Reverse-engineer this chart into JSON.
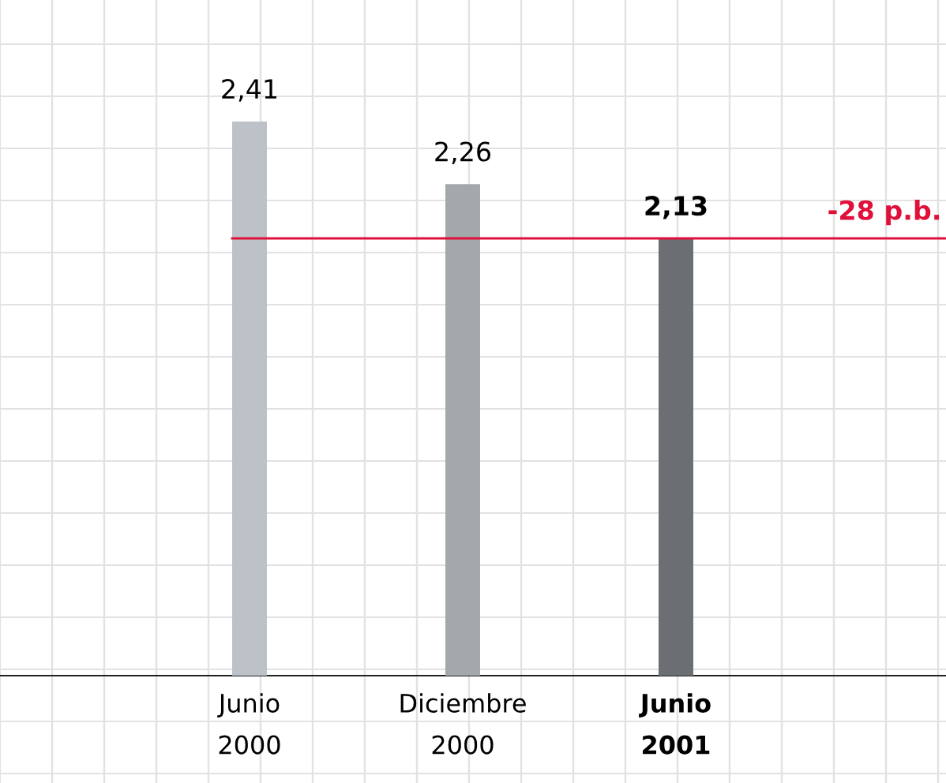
{
  "chart_data": {
    "type": "bar",
    "categories": [
      "Junio\n2000",
      "Diciembre\n2000",
      "Junio\n2001"
    ],
    "values": [
      2.41,
      2.26,
      2.13
    ],
    "colors": [
      "#bcc2c7",
      "#a3a8aa",
      "#6b6e72"
    ],
    "value_labels": [
      "2,41",
      "2,26",
      "2,13"
    ],
    "tick_labels": "x",
    "ref_lines": [
      {
        "axis": "y",
        "value": 2.13,
        "label": "-28 p.b.",
        "color": "#e0103a"
      }
    ]
  }
}
